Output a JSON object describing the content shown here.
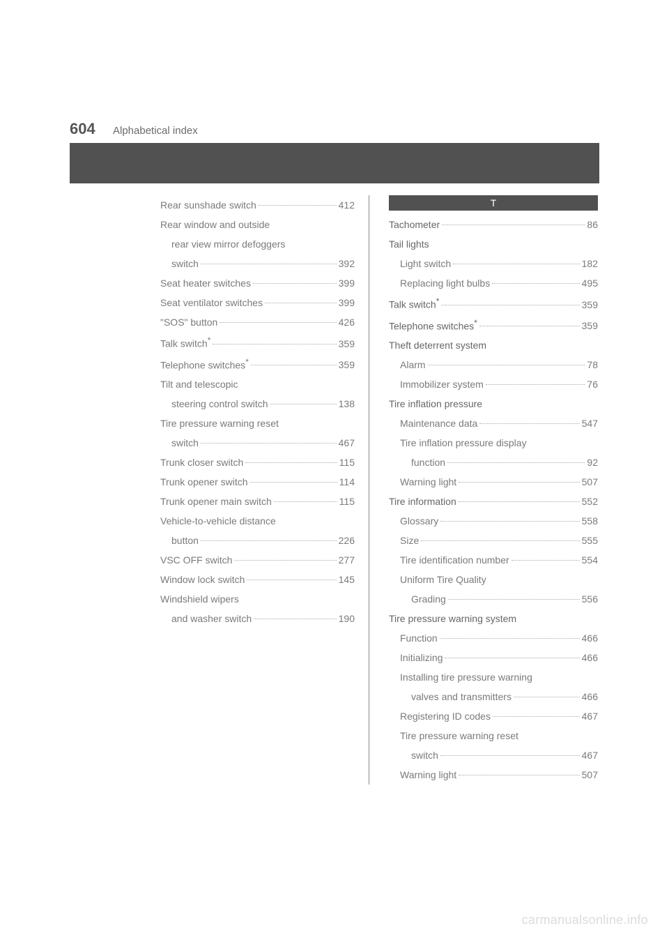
{
  "page_number": "604",
  "page_title": "Alphabetical index",
  "left_column": [
    {
      "label": "Rear sunshade switch",
      "page": "412",
      "indent": 0
    },
    {
      "label": "Rear window and outside",
      "page": "",
      "indent": 0,
      "nodots": true
    },
    {
      "label": "rear view mirror defoggers",
      "page": "",
      "indent": 1,
      "nodots": true
    },
    {
      "label": "switch",
      "page": "392",
      "indent": 1
    },
    {
      "label": "Seat heater switches",
      "page": "399",
      "indent": 0
    },
    {
      "label": "Seat ventilator switches",
      "page": "399",
      "indent": 0
    },
    {
      "label": "\"SOS\" button",
      "page": "426",
      "indent": 0
    },
    {
      "label": "Talk switch",
      "page": "359",
      "indent": 0,
      "star": true
    },
    {
      "label": "Telephone switches",
      "page": "359",
      "indent": 0,
      "star": true
    },
    {
      "label": "Tilt and telescopic",
      "page": "",
      "indent": 0,
      "nodots": true
    },
    {
      "label": "steering control switch",
      "page": "138",
      "indent": 1
    },
    {
      "label": "Tire pressure warning reset",
      "page": "",
      "indent": 0,
      "nodots": true
    },
    {
      "label": "switch",
      "page": "467",
      "indent": 1
    },
    {
      "label": "Trunk closer switch",
      "page": "115",
      "indent": 0
    },
    {
      "label": "Trunk opener switch",
      "page": "114",
      "indent": 0
    },
    {
      "label": "Trunk opener main switch",
      "page": "115",
      "indent": 0
    },
    {
      "label": "Vehicle-to-vehicle distance",
      "page": "",
      "indent": 0,
      "nodots": true
    },
    {
      "label": "button",
      "page": "226",
      "indent": 1
    },
    {
      "label": "VSC OFF switch",
      "page": "277",
      "indent": 0
    },
    {
      "label": "Window lock switch",
      "page": "145",
      "indent": 0
    },
    {
      "label": "Windshield wipers",
      "page": "",
      "indent": 0,
      "nodots": true
    },
    {
      "label": "and washer switch",
      "page": "190",
      "indent": 1
    }
  ],
  "right_section_letter": "T",
  "right_column": [
    {
      "label": "Tachometer",
      "page": "86",
      "indent": 0,
      "bold": true
    },
    {
      "label": "Tail lights",
      "page": "",
      "indent": 0,
      "nodots": true,
      "bold": true
    },
    {
      "label": "Light switch",
      "page": "182",
      "indent": 1
    },
    {
      "label": "Replacing light bulbs",
      "page": "495",
      "indent": 1
    },
    {
      "label": "Talk switch",
      "page": "359",
      "indent": 0,
      "star": true,
      "bold": true
    },
    {
      "label": "Telephone switches",
      "page": "359",
      "indent": 0,
      "star": true,
      "bold": true
    },
    {
      "label": "Theft deterrent system",
      "page": "",
      "indent": 0,
      "nodots": true,
      "bold": true
    },
    {
      "label": "Alarm",
      "page": "78",
      "indent": 1
    },
    {
      "label": "Immobilizer system",
      "page": "76",
      "indent": 1
    },
    {
      "label": "Tire inflation pressure",
      "page": "",
      "indent": 0,
      "nodots": true,
      "bold": true
    },
    {
      "label": "Maintenance data",
      "page": "547",
      "indent": 1
    },
    {
      "label": "Tire inflation pressure display",
      "page": "",
      "indent": 1,
      "nodots": true
    },
    {
      "label": "function",
      "page": "92",
      "indent": 2
    },
    {
      "label": "Warning light",
      "page": "507",
      "indent": 1
    },
    {
      "label": "Tire information",
      "page": "552",
      "indent": 0,
      "bold": true
    },
    {
      "label": "Glossary",
      "page": "558",
      "indent": 1
    },
    {
      "label": "Size",
      "page": "555",
      "indent": 1
    },
    {
      "label": "Tire identification number",
      "page": "554",
      "indent": 1
    },
    {
      "label": "Uniform Tire Quality",
      "page": "",
      "indent": 1,
      "nodots": true
    },
    {
      "label": "Grading",
      "page": "556",
      "indent": 2
    },
    {
      "label": "Tire pressure warning system",
      "page": "",
      "indent": 0,
      "nodots": true,
      "bold": true
    },
    {
      "label": "Function",
      "page": "466",
      "indent": 1
    },
    {
      "label": "Initializing",
      "page": "466",
      "indent": 1
    },
    {
      "label": "Installing tire pressure warning",
      "page": "",
      "indent": 1,
      "nodots": true
    },
    {
      "label": "valves and transmitters",
      "page": "466",
      "indent": 2
    },
    {
      "label": "Registering ID codes",
      "page": "467",
      "indent": 1
    },
    {
      "label": "Tire pressure warning reset",
      "page": "",
      "indent": 1,
      "nodots": true
    },
    {
      "label": "switch",
      "page": "467",
      "indent": 2
    },
    {
      "label": "Warning light",
      "page": "507",
      "indent": 1
    }
  ],
  "watermark": "carmanualsonline.info"
}
